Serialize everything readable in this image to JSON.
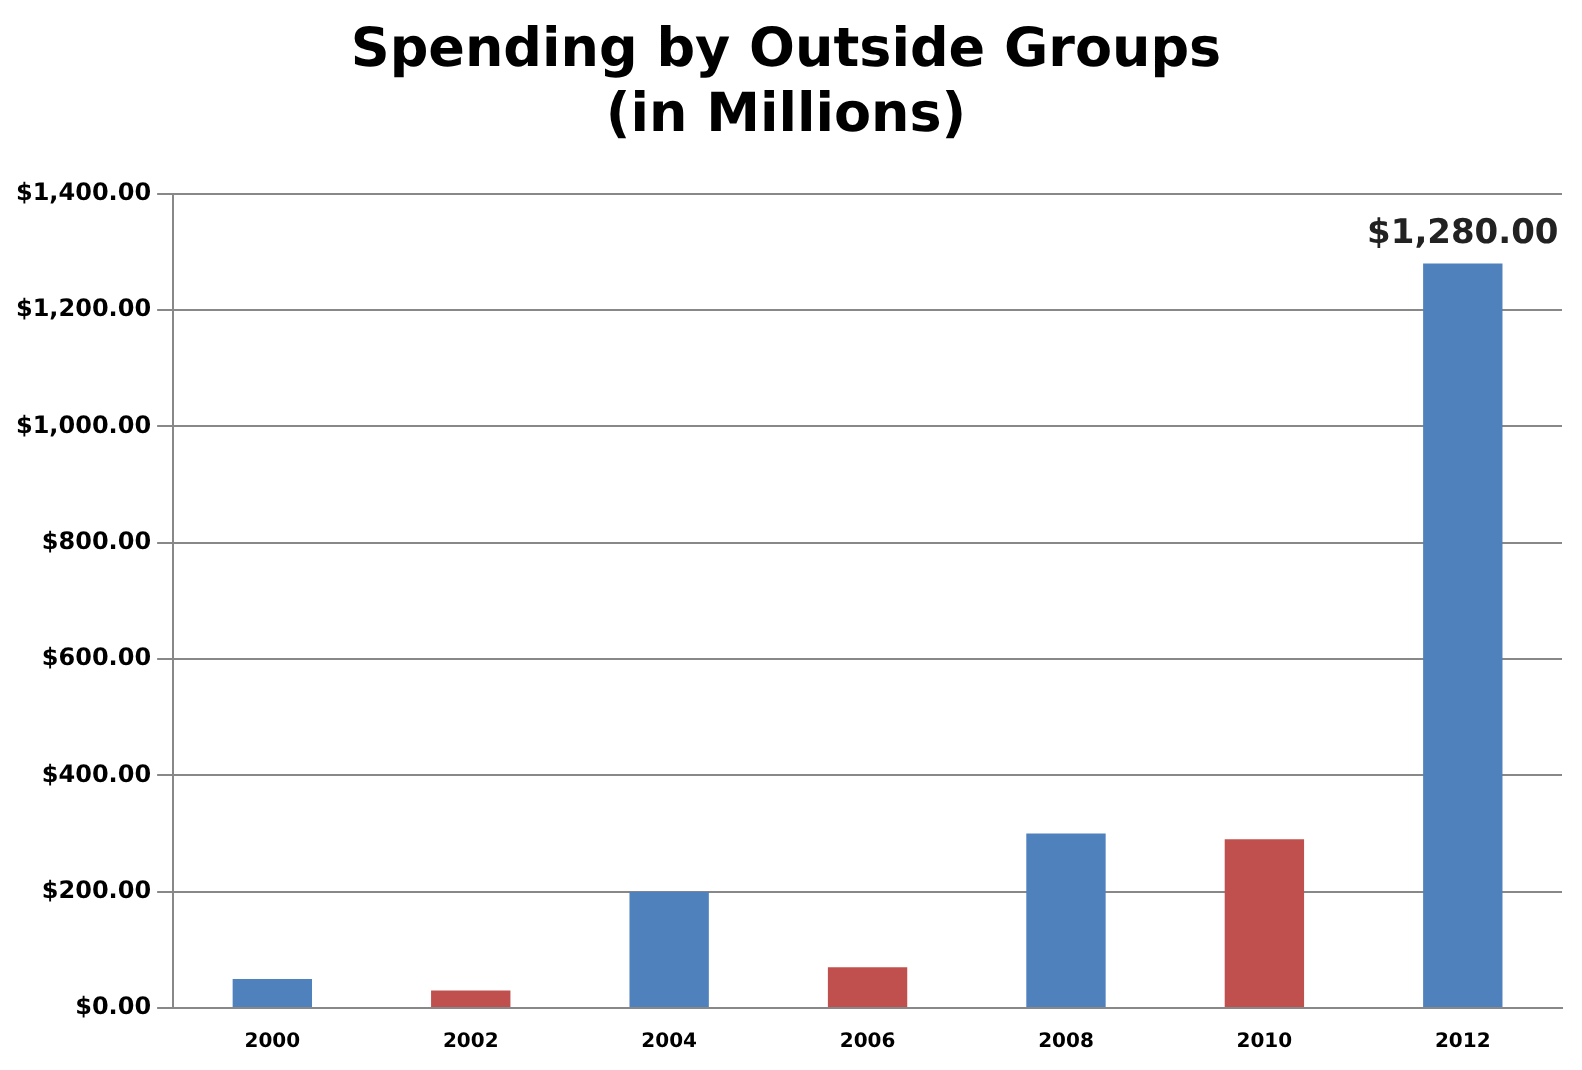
{
  "chart_data": {
    "type": "bar",
    "title": "Spending by Outside Groups\n(in Millions)",
    "categories": [
      "2000",
      "2002",
      "2004",
      "2006",
      "2008",
      "2010",
      "2012"
    ],
    "values": [
      50,
      30,
      200,
      70,
      300,
      290,
      1280
    ],
    "colors": [
      "#4f81bd",
      "#c0504d",
      "#4f81bd",
      "#c0504d",
      "#4f81bd",
      "#c0504d",
      "#4f81bd"
    ],
    "value_labels": [
      null,
      null,
      null,
      null,
      null,
      null,
      "$1,280.00"
    ],
    "ylim": [
      0,
      1400
    ],
    "yticks": [
      {
        "value": 0,
        "label": "$0.00"
      },
      {
        "value": 200,
        "label": "$200.00"
      },
      {
        "value": 400,
        "label": "$400.00"
      },
      {
        "value": 600,
        "label": "$600.00"
      },
      {
        "value": 800,
        "label": "$800.00"
      },
      {
        "value": 1000,
        "label": "$1,000.00"
      },
      {
        "value": 1200,
        "label": "$1,200.00"
      },
      {
        "value": 1400,
        "label": "$1,400.00"
      }
    ],
    "grid": "y"
  }
}
